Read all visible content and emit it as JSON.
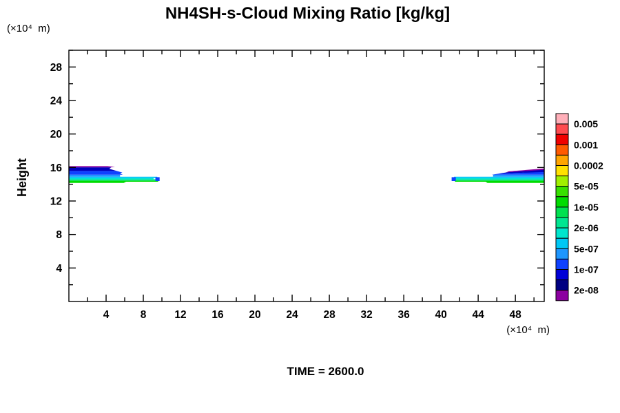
{
  "chart_data": {
    "type": "contour-filled",
    "title": "NH4SH-s-Cloud Mixing Ratio [kg/kg]",
    "time_annotation": "TIME = 2600.0",
    "colors": {
      "background": "#FFFFFF",
      "frame": "#000000",
      "text": "#000000"
    },
    "x_axis": {
      "unit_label": "(×10⁴  m)",
      "range": [
        0,
        51.1
      ],
      "major_ticks": [
        4,
        8,
        12,
        16,
        20,
        24,
        28,
        32,
        36,
        40,
        44,
        48
      ],
      "minor_ticks": [
        2,
        6,
        10,
        14,
        18,
        22,
        26,
        30,
        34,
        38,
        42,
        46,
        50
      ]
    },
    "y_axis": {
      "label": "Height",
      "unit_label": "(×10⁴  m)",
      "range": [
        0,
        30.0
      ],
      "major_ticks": [
        4,
        8,
        12,
        16,
        20,
        24,
        28
      ],
      "minor_ticks": [
        2,
        6,
        10,
        14,
        18,
        22,
        26,
        30
      ]
    },
    "colorbar": {
      "cell_colors": [
        "#FFAFB9",
        "#FF4B50",
        "#F00000",
        "#FF5A00",
        "#FFA500",
        "#FFE100",
        "#A0F000",
        "#37E100",
        "#00DC00",
        "#00E150",
        "#00E691",
        "#00E6CD",
        "#00C8F5",
        "#1E96FF",
        "#0F41FF",
        "#0000D7",
        "#000082",
        "#8C00A0"
      ],
      "labels": [
        "0.005",
        "0.001",
        "0.0002",
        "5e-05",
        "1e-05",
        "2e-06",
        "5e-07",
        "1e-07",
        "2e-08"
      ]
    },
    "features": [
      {
        "name": "left-cloud-green-band",
        "color": "#00DC00",
        "points": [
          [
            0,
            14.16
          ],
          [
            5.9,
            14.16
          ],
          [
            6.15,
            14.3
          ],
          [
            9.6,
            14.3
          ],
          [
            9.6,
            14.44
          ],
          [
            0,
            14.44
          ]
        ]
      },
      {
        "name": "left-cloud-springgreen-band",
        "color": "#00E691",
        "points": [
          [
            0,
            14.44
          ],
          [
            9.7,
            14.44
          ],
          [
            9.7,
            14.6
          ],
          [
            0,
            14.6
          ]
        ]
      },
      {
        "name": "left-cloud-turquoise-band",
        "color": "#00E6CD",
        "points": [
          [
            0,
            14.6
          ],
          [
            9.1,
            14.6
          ],
          [
            9.1,
            14.74
          ],
          [
            0,
            14.74
          ]
        ]
      },
      {
        "name": "left-cloud-azure-band",
        "color": "#00C8F5",
        "points": [
          [
            0,
            14.74
          ],
          [
            9.5,
            14.74
          ],
          [
            9.5,
            14.9
          ],
          [
            0,
            14.9
          ]
        ]
      },
      {
        "name": "left-cloud-tip-cap",
        "color": "#0F41FF",
        "points": [
          [
            9.3,
            14.38
          ],
          [
            9.75,
            14.38
          ],
          [
            9.75,
            14.84
          ],
          [
            9.3,
            14.84
          ]
        ]
      },
      {
        "name": "left-cloud-midblue-band",
        "color": "#1E96FF",
        "points": [
          [
            0,
            14.9
          ],
          [
            5.5,
            14.9
          ],
          [
            5.5,
            15.14
          ],
          [
            0,
            15.14
          ]
        ]
      },
      {
        "name": "left-cloud-blue-band",
        "color": "#0F41FF",
        "points": [
          [
            0,
            15.14
          ],
          [
            5.8,
            15.14
          ],
          [
            5.5,
            15.28
          ],
          [
            5.75,
            15.4
          ],
          [
            5.15,
            15.58
          ],
          [
            0,
            15.58
          ]
        ]
      },
      {
        "name": "left-cloud-navy-band",
        "color": "#0000BE",
        "points": [
          [
            0,
            15.58
          ],
          [
            5.15,
            15.58
          ],
          [
            4.35,
            15.84
          ],
          [
            4.55,
            16.02
          ],
          [
            0,
            16.02
          ]
        ]
      },
      {
        "name": "left-cloud-purple-top",
        "color": "#8C00A0",
        "points": [
          [
            0,
            16.02
          ],
          [
            4.55,
            16.02
          ],
          [
            4.95,
            16.08
          ],
          [
            4.15,
            16.16
          ],
          [
            0,
            16.16
          ]
        ]
      },
      {
        "name": "right-cloud-green-band",
        "color": "#00DC00",
        "points": [
          [
            41.5,
            14.3
          ],
          [
            44.8,
            14.3
          ],
          [
            45.0,
            14.16
          ],
          [
            51.1,
            14.16
          ],
          [
            51.1,
            14.44
          ],
          [
            41.5,
            14.44
          ]
        ]
      },
      {
        "name": "right-cloud-springgreen-band",
        "color": "#00E691",
        "points": [
          [
            41.3,
            14.44
          ],
          [
            51.1,
            14.44
          ],
          [
            51.1,
            14.6
          ],
          [
            41.3,
            14.6
          ]
        ]
      },
      {
        "name": "right-cloud-turquoise-band",
        "color": "#00E6CD",
        "points": [
          [
            41.5,
            14.6
          ],
          [
            51.1,
            14.6
          ],
          [
            51.1,
            14.74
          ],
          [
            41.5,
            14.74
          ]
        ]
      },
      {
        "name": "right-cloud-azure-band",
        "color": "#00C8F5",
        "points": [
          [
            41.4,
            14.74
          ],
          [
            51.1,
            14.74
          ],
          [
            51.1,
            14.9
          ],
          [
            41.4,
            14.9
          ]
        ]
      },
      {
        "name": "right-cloud-tip-cap",
        "color": "#0F41FF",
        "points": [
          [
            41.15,
            14.38
          ],
          [
            41.6,
            14.38
          ],
          [
            41.6,
            14.84
          ],
          [
            41.15,
            14.84
          ]
        ]
      },
      {
        "name": "right-cloud-midblue-band",
        "color": "#1E96FF",
        "points": [
          [
            45.6,
            14.9
          ],
          [
            51.1,
            14.9
          ],
          [
            51.1,
            15.14
          ],
          [
            45.6,
            15.14
          ]
        ]
      },
      {
        "name": "right-cloud-blue-band",
        "color": "#0F41FF",
        "points": [
          [
            45.45,
            15.14
          ],
          [
            51.1,
            15.14
          ],
          [
            51.1,
            15.5
          ],
          [
            48.9,
            15.5
          ],
          [
            48.9,
            15.38
          ],
          [
            46.3,
            15.28
          ]
        ]
      },
      {
        "name": "right-cloud-navy-band",
        "color": "#0000BE",
        "points": [
          [
            46.2,
            15.26
          ],
          [
            48.9,
            15.38
          ],
          [
            51.1,
            15.46
          ],
          [
            51.1,
            15.76
          ],
          [
            47.2,
            15.44
          ]
        ]
      },
      {
        "name": "right-cloud-purple-top",
        "color": "#8C00A0",
        "points": [
          [
            47.0,
            15.42
          ],
          [
            51.1,
            15.72
          ],
          [
            51.1,
            15.88
          ],
          [
            47.3,
            15.54
          ]
        ]
      }
    ]
  }
}
